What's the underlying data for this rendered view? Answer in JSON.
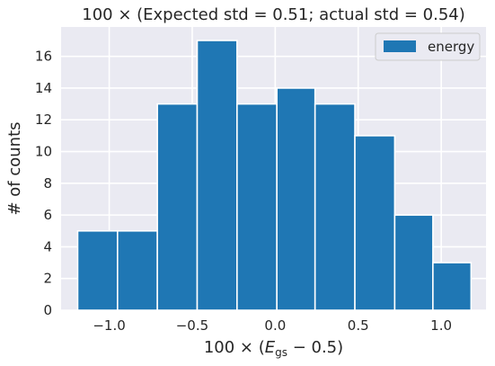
{
  "chart_data": {
    "type": "bar",
    "title": "100 × (Expected std = 0.51; actual std = 0.54)",
    "xlabel_prefix": "100 × (",
    "xlabel_var": "E",
    "xlabel_sub": "gs",
    "xlabel_suffix": " − 0.5)",
    "ylabel": "# of counts",
    "xlim": [
      -1.29,
      1.27
    ],
    "ylim": [
      0,
      17.85
    ],
    "x_ticks": [
      -1.0,
      -0.5,
      0.0,
      0.5,
      1.0
    ],
    "x_tick_labels": [
      "−1.0",
      "−0.5",
      "0.0",
      "0.5",
      "1.0"
    ],
    "y_ticks": [
      0,
      2,
      4,
      6,
      8,
      10,
      12,
      14,
      16
    ],
    "y_tick_labels": [
      "0",
      "2",
      "4",
      "6",
      "8",
      "10",
      "12",
      "14",
      "16"
    ],
    "grid": true,
    "legend_position": "top-right",
    "series": [
      {
        "name": "energy",
        "color": "#1f77b4",
        "bin_edges": [
          -1.19,
          -0.95,
          -0.71,
          -0.47,
          -0.23,
          0.01,
          0.24,
          0.48,
          0.72,
          0.95,
          1.18
        ],
        "values": [
          5,
          5,
          13,
          17,
          13,
          14,
          13,
          11,
          6,
          3
        ]
      }
    ]
  }
}
